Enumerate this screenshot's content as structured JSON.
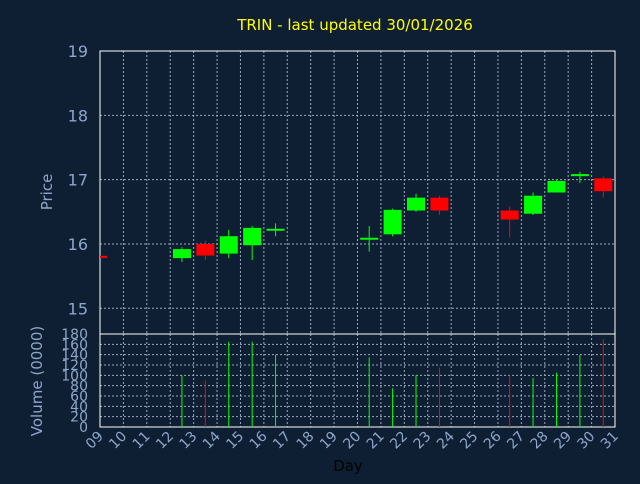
{
  "title": "TRIN - last updated 30/01/2026",
  "colors": {
    "background": "#0f1f33",
    "frame": "#ffffff",
    "grid": "#9aa9b8",
    "text": "#8ea6c9",
    "title": "#ffff00",
    "up": "#00ff00",
    "down": "#ff0000",
    "xlabel": "#000000"
  },
  "chart_data": {
    "type": "candlestick",
    "title": "TRIN - last updated 30/01/2026",
    "xlabel": "Day",
    "x_ticks": [
      "09",
      "10",
      "11",
      "12",
      "13",
      "14",
      "15",
      "16",
      "17",
      "18",
      "19",
      "20",
      "21",
      "22",
      "23",
      "24",
      "25",
      "26",
      "27",
      "28",
      "29",
      "30",
      "31"
    ],
    "price": {
      "ylabel": "Price",
      "ylim": [
        14.6,
        19
      ],
      "yticks": [
        15,
        16,
        17,
        18,
        19
      ],
      "grid": true
    },
    "volume": {
      "ylabel": "Volume (0000)",
      "ylim": [
        0,
        180
      ],
      "yticks": [
        0,
        20,
        40,
        60,
        80,
        100,
        120,
        140,
        160,
        180
      ],
      "grid": true
    },
    "candles": [
      {
        "day": "09",
        "open": 15.8,
        "high": 15.8,
        "low": 15.8,
        "close": 15.8,
        "volume": 0
      },
      {
        "day": "12",
        "open": 15.78,
        "high": 15.95,
        "low": 15.72,
        "close": 15.92,
        "volume": 100
      },
      {
        "day": "13",
        "open": 16.0,
        "high": 16.05,
        "low": 15.75,
        "close": 15.82,
        "volume": 90
      },
      {
        "day": "14",
        "open": 15.85,
        "high": 16.22,
        "low": 15.78,
        "close": 16.12,
        "volume": 165
      },
      {
        "day": "15",
        "open": 15.98,
        "high": 16.28,
        "low": 15.75,
        "close": 16.25,
        "volume": 165
      },
      {
        "day": "16",
        "open": 16.22,
        "high": 16.32,
        "low": 16.12,
        "close": 16.22,
        "volume": 140
      },
      {
        "day": "20",
        "open": 16.08,
        "high": 16.28,
        "low": 15.88,
        "close": 16.08,
        "volume": 135
      },
      {
        "day": "21",
        "open": 16.15,
        "high": 16.55,
        "low": 16.12,
        "close": 16.53,
        "volume": 75
      },
      {
        "day": "22",
        "open": 16.52,
        "high": 16.78,
        "low": 16.5,
        "close": 16.72,
        "volume": 100
      },
      {
        "day": "23",
        "open": 16.72,
        "high": 16.75,
        "low": 16.45,
        "close": 16.52,
        "volume": 115
      },
      {
        "day": "26",
        "open": 16.52,
        "high": 16.58,
        "low": 16.1,
        "close": 16.38,
        "volume": 100
      },
      {
        "day": "27",
        "open": 16.47,
        "high": 16.8,
        "low": 16.45,
        "close": 16.75,
        "volume": 95
      },
      {
        "day": "28",
        "open": 16.8,
        "high": 17.0,
        "low": 16.8,
        "close": 16.98,
        "volume": 105
      },
      {
        "day": "29",
        "open": 17.05,
        "high": 17.12,
        "low": 16.95,
        "close": 17.07,
        "volume": 140
      },
      {
        "day": "30",
        "open": 17.02,
        "high": 17.05,
        "low": 16.72,
        "close": 16.82,
        "volume": 170
      }
    ]
  }
}
